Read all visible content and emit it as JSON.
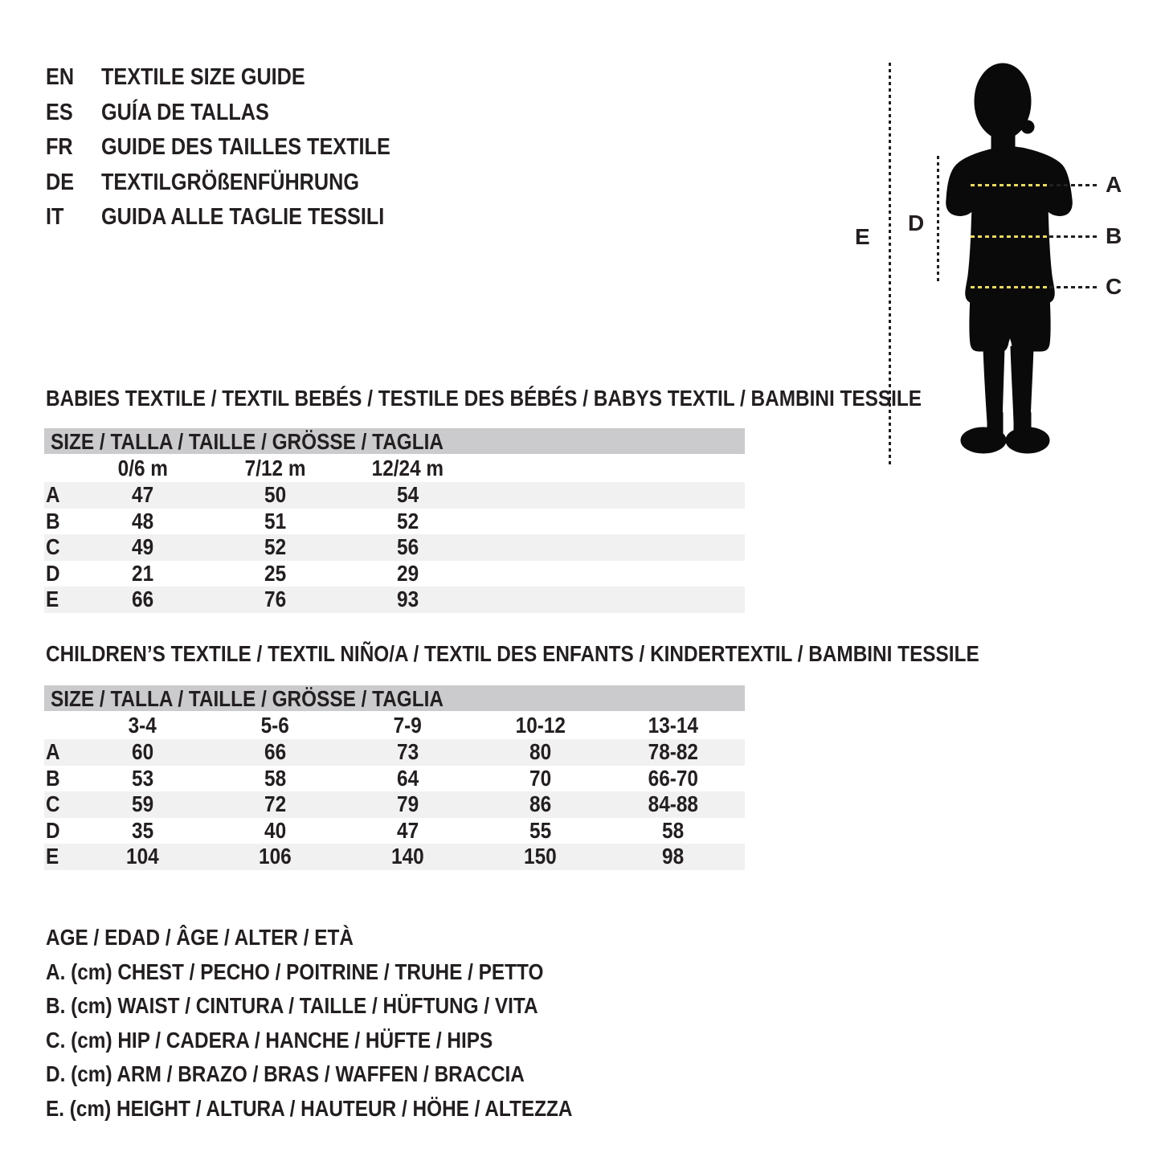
{
  "colors": {
    "text": "#231f20",
    "header_bar": "#cbcbcd",
    "row_stripe": "#f1f1f2",
    "dash_yellow": "#e8d867",
    "silhouette": "#0a0a0a"
  },
  "header": {
    "languages": [
      {
        "code": "EN",
        "title": "TEXTILE SIZE GUIDE"
      },
      {
        "code": "ES",
        "title": "GUÍA DE TALLAS"
      },
      {
        "code": "FR",
        "title": "GUIDE DES TAILLES TEXTILE"
      },
      {
        "code": "DE",
        "title": "TEXTILGRÖßENFÜHRUNG"
      },
      {
        "code": "IT",
        "title": "GUIDA ALLE TAGLIE TESSILI"
      }
    ]
  },
  "figure": {
    "labels": {
      "A": "A",
      "B": "B",
      "C": "C",
      "D": "D",
      "E": "E"
    }
  },
  "babies": {
    "title": "BABIES TEXTILE / TEXTIL BEBÉS / TESTILE DES BÉBÉS / BABYS TEXTIL / BAMBINI TESSILE",
    "size_header": "SIZE / TALLA / TAILLE / GRÖSSE / TAGLIA",
    "columns": [
      "0/6 m",
      "7/12 m",
      "12/24 m"
    ],
    "rows": [
      {
        "label": "A",
        "values": [
          "47",
          "50",
          "54"
        ]
      },
      {
        "label": "B",
        "values": [
          "48",
          "51",
          "52"
        ]
      },
      {
        "label": "C",
        "values": [
          "49",
          "52",
          "56"
        ]
      },
      {
        "label": "D",
        "values": [
          "21",
          "25",
          "29"
        ]
      },
      {
        "label": "E",
        "values": [
          "66",
          "76",
          "93"
        ]
      }
    ]
  },
  "children": {
    "title": "CHILDREN’S TEXTILE / TEXTIL NIÑO/A / TEXTIL DES ENFANTS / KINDERTEXTIL / BAMBINI TESSILE",
    "size_header": "SIZE / TALLA / TAILLE / GRÖSSE / TAGLIA",
    "columns": [
      "3-4",
      "5-6",
      "7-9",
      "10-12",
      "13-14"
    ],
    "rows": [
      {
        "label": "A",
        "values": [
          "60",
          "66",
          "73",
          "80",
          "78-82"
        ]
      },
      {
        "label": "B",
        "values": [
          "53",
          "58",
          "64",
          "70",
          "66-70"
        ]
      },
      {
        "label": "C",
        "values": [
          "59",
          "72",
          "79",
          "86",
          "84-88"
        ]
      },
      {
        "label": "D",
        "values": [
          "35",
          "40",
          "47",
          "55",
          "58"
        ]
      },
      {
        "label": "E",
        "values": [
          "104",
          "106",
          "140",
          "150",
          "98"
        ]
      }
    ]
  },
  "legend": {
    "lines": [
      "AGE / EDAD / ÂGE / ALTER / ETÀ",
      "A. (cm) CHEST / PECHO / POITRINE / TRUHE / PETTO",
      "B. (cm) WAIST / CINTURA / TAILLE / HÜFTUNG / VITA",
      "C. (cm) HIP / CADERA / HANCHE / HÜFTE / HIPS",
      "D. (cm) ARM / BRAZO / BRAS / WAFFEN / BRACCIA",
      "E. (cm) HEIGHT / ALTURA / HAUTEUR / HÖHE / ALTEZZA"
    ]
  }
}
